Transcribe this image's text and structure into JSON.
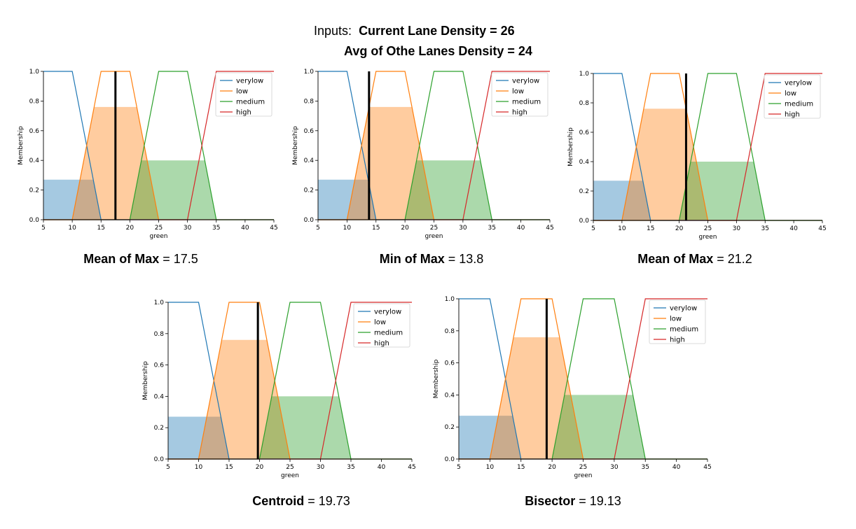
{
  "header": {
    "inputs_label": "Inputs:",
    "line1_value": "Current Lane Density = 26",
    "line2_value": "Avg of Othe Lanes Density  = 24"
  },
  "colors": {
    "verylow": "#1f77b4",
    "low": "#ff7f0e",
    "medium": "#2ca02c",
    "high": "#d62728",
    "verylow_fill": "#a6c4dd",
    "low_fill": "#ffc698",
    "medium_fill": "#a7daa5",
    "defuzz_line": "#000000"
  },
  "chart_data": [
    {
      "type": "line",
      "method": "Mean of Max",
      "result_text": "17.5",
      "defuzz_value": 17.5,
      "xlabel": "green",
      "ylabel": "Membership",
      "xlim": [
        5,
        45
      ],
      "ylim": [
        0,
        1.0
      ],
      "xticks": [
        5,
        10,
        15,
        20,
        25,
        30,
        35,
        40,
        45
      ],
      "yticks": [
        "0.0",
        "0.2",
        "0.4",
        "0.6",
        "0.8",
        "1.0"
      ],
      "legend": [
        "verylow",
        "low",
        "medium",
        "high"
      ],
      "legend_position": "upper-right",
      "series": [
        {
          "name": "verylow",
          "x": [
            5,
            10,
            15,
            45
          ],
          "y": [
            1,
            1,
            0,
            0
          ]
        },
        {
          "name": "low",
          "x": [
            5,
            10,
            15,
            20,
            25,
            45
          ],
          "y": [
            0,
            0,
            1,
            1,
            0,
            0
          ]
        },
        {
          "name": "medium",
          "x": [
            5,
            20,
            25,
            30,
            35,
            45
          ],
          "y": [
            0,
            0,
            1,
            1,
            0,
            0
          ]
        },
        {
          "name": "high",
          "x": [
            5,
            30,
            35,
            45
          ],
          "y": [
            0,
            0,
            1,
            1
          ]
        }
      ],
      "activations": {
        "verylow": 0.27,
        "low": 0.76,
        "medium": 0.4
      }
    },
    {
      "type": "line",
      "method": "Min of Max",
      "result_text": "13.8",
      "defuzz_value": 13.8,
      "xlabel": "green",
      "ylabel": "Membership",
      "xlim": [
        5,
        45
      ],
      "ylim": [
        0,
        1.0
      ],
      "xticks": [
        5,
        10,
        15,
        20,
        25,
        30,
        35,
        40,
        45
      ],
      "yticks": [
        "0.0",
        "0.2",
        "0.4",
        "0.6",
        "0.8",
        "1.0"
      ],
      "legend": [
        "verylow",
        "low",
        "medium",
        "high"
      ],
      "legend_position": "upper-right",
      "series": [
        {
          "name": "verylow",
          "x": [
            5,
            10,
            15,
            45
          ],
          "y": [
            1,
            1,
            0,
            0
          ]
        },
        {
          "name": "low",
          "x": [
            5,
            10,
            15,
            20,
            25,
            45
          ],
          "y": [
            0,
            0,
            1,
            1,
            0,
            0
          ]
        },
        {
          "name": "medium",
          "x": [
            5,
            20,
            25,
            30,
            35,
            45
          ],
          "y": [
            0,
            0,
            1,
            1,
            0,
            0
          ]
        },
        {
          "name": "high",
          "x": [
            5,
            30,
            35,
            45
          ],
          "y": [
            0,
            0,
            1,
            1
          ]
        }
      ],
      "activations": {
        "verylow": 0.27,
        "low": 0.76,
        "medium": 0.4
      }
    },
    {
      "type": "line",
      "method": "Mean of Max",
      "result_text": "21.2",
      "defuzz_value": 21.2,
      "xlabel": "green",
      "ylabel": "Membership",
      "xlim": [
        5,
        45
      ],
      "ylim": [
        0,
        1.0
      ],
      "xticks": [
        5,
        10,
        15,
        20,
        25,
        30,
        35,
        40,
        45
      ],
      "yticks": [
        "0.0",
        "0.2",
        "0.4",
        "0.6",
        "0.8",
        "1.0"
      ],
      "legend": [
        "verylow",
        "low",
        "medium",
        "high"
      ],
      "legend_position": "upper-right",
      "series": [
        {
          "name": "verylow",
          "x": [
            5,
            10,
            15,
            45
          ],
          "y": [
            1,
            1,
            0,
            0
          ]
        },
        {
          "name": "low",
          "x": [
            5,
            10,
            15,
            20,
            25,
            45
          ],
          "y": [
            0,
            0,
            1,
            1,
            0,
            0
          ]
        },
        {
          "name": "medium",
          "x": [
            5,
            20,
            25,
            30,
            35,
            45
          ],
          "y": [
            0,
            0,
            1,
            1,
            0,
            0
          ]
        },
        {
          "name": "high",
          "x": [
            5,
            30,
            35,
            45
          ],
          "y": [
            0,
            0,
            1,
            1
          ]
        }
      ],
      "activations": {
        "verylow": 0.27,
        "low": 0.76,
        "medium": 0.4
      }
    },
    {
      "type": "line",
      "method": "Centroid",
      "result_text": "19.73",
      "defuzz_value": 19.73,
      "xlabel": "green",
      "ylabel": "Membership",
      "xlim": [
        5,
        45
      ],
      "ylim": [
        0,
        1.0
      ],
      "xticks": [
        5,
        10,
        15,
        20,
        25,
        30,
        35,
        40,
        45
      ],
      "yticks": [
        "0.0",
        "0.2",
        "0.4",
        "0.6",
        "0.8",
        "1.0"
      ],
      "legend": [
        "verylow",
        "low",
        "medium",
        "high"
      ],
      "legend_position": "upper-right",
      "series": [
        {
          "name": "verylow",
          "x": [
            5,
            10,
            15,
            45
          ],
          "y": [
            1,
            1,
            0,
            0
          ]
        },
        {
          "name": "low",
          "x": [
            5,
            10,
            15,
            20,
            25,
            45
          ],
          "y": [
            0,
            0,
            1,
            1,
            0,
            0
          ]
        },
        {
          "name": "medium",
          "x": [
            5,
            20,
            25,
            30,
            35,
            45
          ],
          "y": [
            0,
            0,
            1,
            1,
            0,
            0
          ]
        },
        {
          "name": "high",
          "x": [
            5,
            30,
            35,
            45
          ],
          "y": [
            0,
            0,
            1,
            1
          ]
        }
      ],
      "activations": {
        "verylow": 0.27,
        "low": 0.76,
        "medium": 0.4
      }
    },
    {
      "type": "line",
      "method": "Bisector",
      "result_text": "19.13",
      "defuzz_value": 19.13,
      "xlabel": "green",
      "ylabel": "Membership",
      "xlim": [
        5,
        45
      ],
      "ylim": [
        0,
        1.0
      ],
      "xticks": [
        5,
        10,
        15,
        20,
        25,
        30,
        35,
        40,
        45
      ],
      "yticks": [
        "0.0",
        "0.2",
        "0.4",
        "0.6",
        "0.8",
        "1.0"
      ],
      "legend": [
        "verylow",
        "low",
        "medium",
        "high"
      ],
      "legend_position": "upper-right",
      "series": [
        {
          "name": "verylow",
          "x": [
            5,
            10,
            15,
            45
          ],
          "y": [
            1,
            1,
            0,
            0
          ]
        },
        {
          "name": "low",
          "x": [
            5,
            10,
            15,
            20,
            25,
            45
          ],
          "y": [
            0,
            0,
            1,
            1,
            0,
            0
          ]
        },
        {
          "name": "medium",
          "x": [
            5,
            20,
            25,
            30,
            35,
            45
          ],
          "y": [
            0,
            0,
            1,
            1,
            0,
            0
          ]
        },
        {
          "name": "high",
          "x": [
            5,
            30,
            35,
            45
          ],
          "y": [
            0,
            0,
            1,
            1
          ]
        }
      ],
      "activations": {
        "verylow": 0.27,
        "low": 0.76,
        "medium": 0.4
      }
    }
  ]
}
